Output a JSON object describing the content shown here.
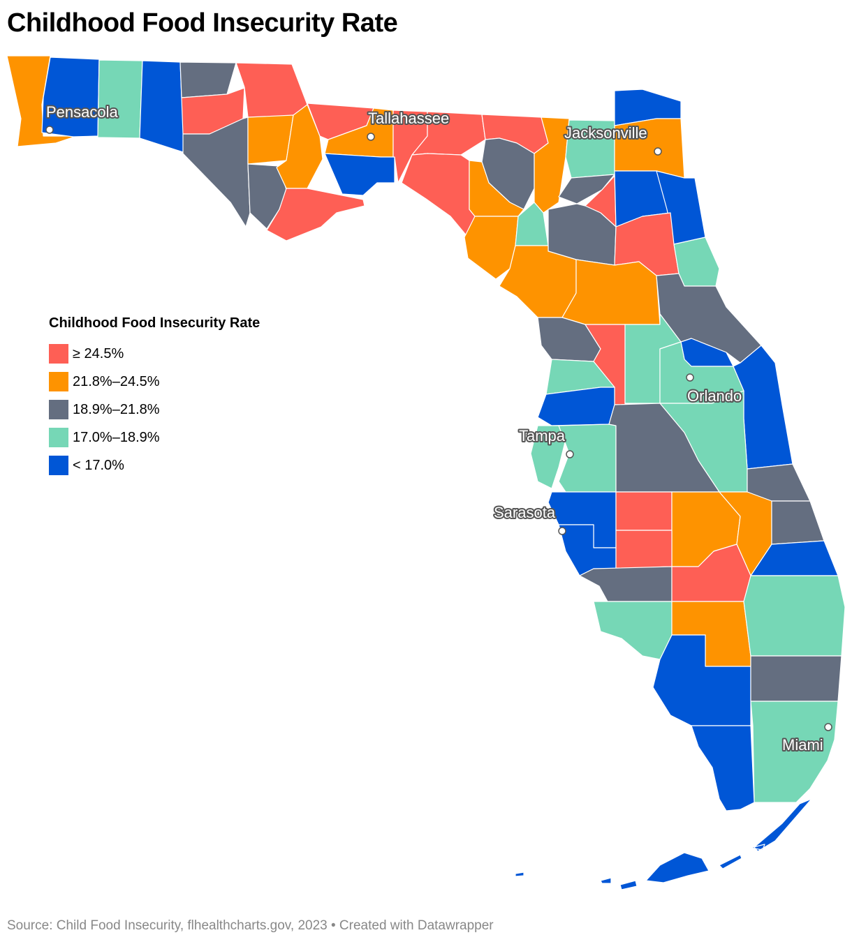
{
  "title": "Childhood Food Insecurity Rate",
  "colors": {
    "red": "#fe5f55",
    "orange": "#fe9300",
    "gray": "#646e80",
    "mint": "#76d7b6",
    "blue": "#0056d6"
  },
  "legend": {
    "title": "Childhood Food Insecurity Rate",
    "items": [
      {
        "label": "≥ 24.5%",
        "color": "#fe5f55"
      },
      {
        "label": "21.8%–24.5%",
        "color": "#fe9300"
      },
      {
        "label": "18.9%–21.8%",
        "color": "#646e80"
      },
      {
        "label": "17.0%–18.9%",
        "color": "#76d7b6"
      },
      {
        "label": "< 17.0%",
        "color": "#0056d6"
      }
    ]
  },
  "cities": {
    "pensacola": "Pensacola",
    "tallahassee": "Tallahassee",
    "jacksonville": "Jacksonville",
    "orlando": "Orlando",
    "tampa": "Tampa",
    "sarasota": "Sarasota",
    "miami": "Miami"
  },
  "source": "Source: Child Food Insecurity, flhealthcharts.gov, 2023 • Created with Datawrapper"
}
